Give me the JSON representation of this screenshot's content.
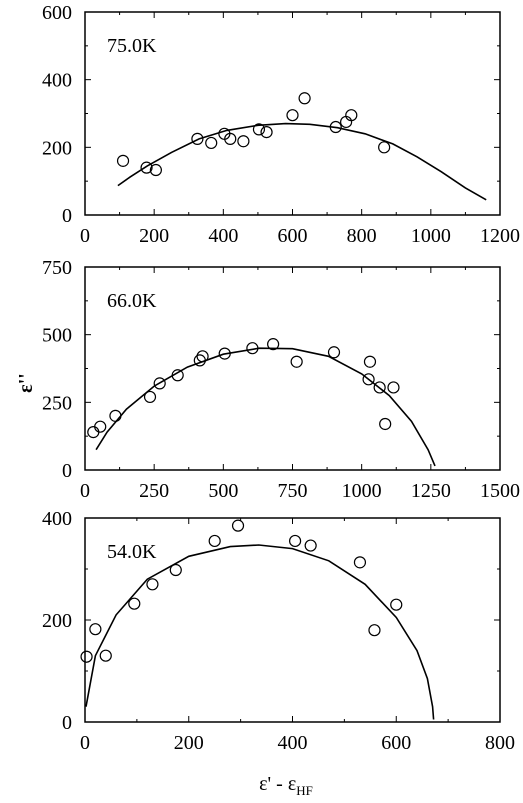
{
  "figure": {
    "xlabel": "ε' - ε",
    "xlabel_sub": "HF",
    "ylabel": "ε''"
  },
  "chart_data": [
    {
      "type": "scatter",
      "panel_label": "75.0K",
      "xlim": [
        0,
        1200
      ],
      "ylim": [
        0,
        600
      ],
      "xticks": [
        0,
        200,
        400,
        600,
        800,
        1000,
        1200
      ],
      "yticks": [
        0,
        200,
        400,
        600
      ],
      "points": [
        [
          110,
          160
        ],
        [
          178,
          140
        ],
        [
          205,
          133
        ],
        [
          325,
          225
        ],
        [
          365,
          213
        ],
        [
          403,
          240
        ],
        [
          420,
          225
        ],
        [
          458,
          218
        ],
        [
          503,
          253
        ],
        [
          525,
          245
        ],
        [
          600,
          295
        ],
        [
          635,
          345
        ],
        [
          725,
          260
        ],
        [
          755,
          275
        ],
        [
          770,
          295
        ],
        [
          865,
          200
        ]
      ],
      "fit": [
        [
          95,
          87
        ],
        [
          130,
          112
        ],
        [
          180,
          145
        ],
        [
          250,
          185
        ],
        [
          330,
          225
        ],
        [
          410,
          250
        ],
        [
          500,
          265
        ],
        [
          580,
          270
        ],
        [
          650,
          268
        ],
        [
          730,
          258
        ],
        [
          810,
          240
        ],
        [
          890,
          210
        ],
        [
          960,
          172
        ],
        [
          1030,
          128
        ],
        [
          1100,
          80
        ],
        [
          1160,
          45
        ]
      ]
    },
    {
      "type": "scatter",
      "panel_label": "66.0K",
      "xlim": [
        0,
        1500
      ],
      "ylim": [
        0,
        750
      ],
      "xticks": [
        0,
        250,
        500,
        750,
        1000,
        1250,
        1500
      ],
      "yticks": [
        0,
        250,
        500,
        750
      ],
      "points": [
        [
          30,
          140
        ],
        [
          55,
          160
        ],
        [
          110,
          200
        ],
        [
          235,
          270
        ],
        [
          270,
          320
        ],
        [
          335,
          350
        ],
        [
          415,
          405
        ],
        [
          425,
          420
        ],
        [
          505,
          430
        ],
        [
          605,
          450
        ],
        [
          680,
          465
        ],
        [
          765,
          400
        ],
        [
          900,
          435
        ],
        [
          1025,
          335
        ],
        [
          1030,
          400
        ],
        [
          1065,
          305
        ],
        [
          1085,
          170
        ],
        [
          1115,
          305
        ]
      ],
      "fit": [
        [
          40,
          75
        ],
        [
          80,
          140
        ],
        [
          150,
          225
        ],
        [
          250,
          310
        ],
        [
          370,
          380
        ],
        [
          500,
          428
        ],
        [
          630,
          450
        ],
        [
          750,
          448
        ],
        [
          880,
          420
        ],
        [
          1000,
          355
        ],
        [
          1100,
          275
        ],
        [
          1180,
          180
        ],
        [
          1240,
          75
        ],
        [
          1265,
          15
        ]
      ]
    },
    {
      "type": "scatter",
      "panel_label": "54.0K",
      "xlim": [
        0,
        800
      ],
      "ylim": [
        0,
        400
      ],
      "xticks": [
        0,
        200,
        400,
        600,
        800
      ],
      "yticks": [
        0,
        200,
        400
      ],
      "points": [
        [
          3,
          128
        ],
        [
          20,
          182
        ],
        [
          40,
          130
        ],
        [
          95,
          232
        ],
        [
          130,
          270
        ],
        [
          175,
          298
        ],
        [
          250,
          355
        ],
        [
          295,
          385
        ],
        [
          405,
          355
        ],
        [
          435,
          346
        ],
        [
          530,
          313
        ],
        [
          558,
          180
        ],
        [
          600,
          230
        ]
      ],
      "fit": [
        [
          2,
          30
        ],
        [
          20,
          130
        ],
        [
          60,
          210
        ],
        [
          120,
          280
        ],
        [
          200,
          325
        ],
        [
          280,
          344
        ],
        [
          335,
          347
        ],
        [
          400,
          340
        ],
        [
          470,
          316
        ],
        [
          540,
          270
        ],
        [
          600,
          205
        ],
        [
          640,
          140
        ],
        [
          660,
          85
        ],
        [
          670,
          30
        ],
        [
          672,
          5
        ]
      ]
    }
  ]
}
